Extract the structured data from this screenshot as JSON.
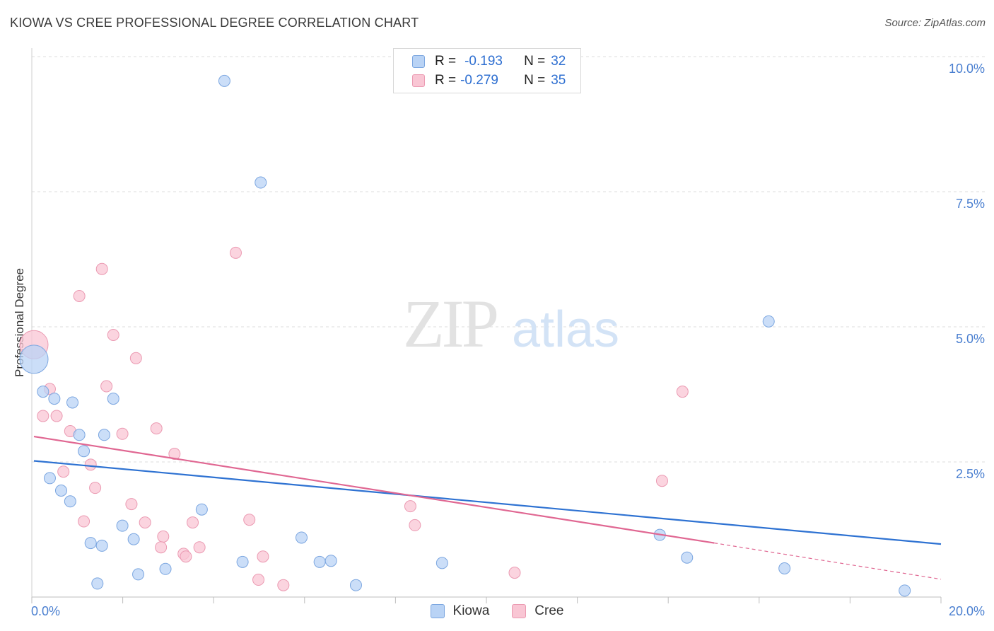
{
  "header": {
    "title": "KIOWA VS CREE PROFESSIONAL DEGREE CORRELATION CHART",
    "source": "Source: ZipAtlas.com"
  },
  "watermark": {
    "zip": "ZIP",
    "atlas": "atlas"
  },
  "legend_top": {
    "rows": [
      {
        "r_label": "R =",
        "r_value": "-0.193",
        "n_label": "N =",
        "n_value": "32"
      },
      {
        "r_label": "R =",
        "r_value": "-0.279",
        "n_label": "N =",
        "n_value": "35"
      }
    ]
  },
  "legend_bottom": {
    "kiowa": "Kiowa",
    "cree": "Cree"
  },
  "colors": {
    "kiowa_fill": "#b9d3f5",
    "kiowa_stroke": "#7ba6e0",
    "kiowa_line": "#2e72d2",
    "cree_fill": "#f9c6d4",
    "cree_stroke": "#eb9ab2",
    "cree_line": "#e06792",
    "tick_label": "#4a7fd0",
    "grid": "#dcdcdc"
  },
  "chart_data": {
    "type": "scatter",
    "title": "KIOWA VS CREE PROFESSIONAL DEGREE CORRELATION CHART",
    "xlabel": "",
    "ylabel": "Professional Degree",
    "xlim": [
      0,
      20
    ],
    "ylim": [
      0,
      10
    ],
    "x_tick_labels": [
      "0.0%",
      "20.0%"
    ],
    "y_ticks": [
      2.5,
      5.0,
      7.5,
      10.0
    ],
    "y_tick_labels": [
      "2.5%",
      "5.0%",
      "7.5%",
      "10.0%"
    ],
    "series": [
      {
        "name": "Kiowa",
        "R": -0.193,
        "N": 32,
        "trend": {
          "x": [
            0,
            20
          ],
          "y": [
            2.52,
            0.98
          ]
        },
        "points": [
          {
            "x": 0.0,
            "y": 4.4,
            "big": true
          },
          {
            "x": 0.2,
            "y": 3.8
          },
          {
            "x": 0.45,
            "y": 3.67
          },
          {
            "x": 0.85,
            "y": 3.6
          },
          {
            "x": 1.75,
            "y": 3.67
          },
          {
            "x": 1.0,
            "y": 3.0
          },
          {
            "x": 1.55,
            "y": 3.0
          },
          {
            "x": 1.1,
            "y": 2.7
          },
          {
            "x": 0.35,
            "y": 2.2
          },
          {
            "x": 0.6,
            "y": 1.97
          },
          {
            "x": 0.8,
            "y": 1.77
          },
          {
            "x": 1.95,
            "y": 1.32
          },
          {
            "x": 1.25,
            "y": 1.0
          },
          {
            "x": 1.5,
            "y": 0.95
          },
          {
            "x": 2.2,
            "y": 1.07
          },
          {
            "x": 3.7,
            "y": 1.62
          },
          {
            "x": 1.4,
            "y": 0.25
          },
          {
            "x": 2.3,
            "y": 0.42
          },
          {
            "x": 2.9,
            "y": 0.52
          },
          {
            "x": 4.6,
            "y": 0.65
          },
          {
            "x": 5.9,
            "y": 1.1
          },
          {
            "x": 6.3,
            "y": 0.65
          },
          {
            "x": 6.55,
            "y": 0.67
          },
          {
            "x": 7.1,
            "y": 0.22
          },
          {
            "x": 9.0,
            "y": 0.63
          },
          {
            "x": 4.2,
            "y": 9.55
          },
          {
            "x": 5.0,
            "y": 7.67
          },
          {
            "x": 16.2,
            "y": 5.1
          },
          {
            "x": 13.8,
            "y": 1.15
          },
          {
            "x": 14.4,
            "y": 0.73
          },
          {
            "x": 16.55,
            "y": 0.53
          },
          {
            "x": 19.2,
            "y": 0.12
          }
        ]
      },
      {
        "name": "Cree",
        "R": -0.279,
        "N": 35,
        "trend": {
          "x": [
            0,
            15
          ],
          "y": [
            2.97,
            1.0
          ],
          "dashed_extension": {
            "x": [
              15,
              20
            ],
            "y": [
              1.0,
              0.33
            ]
          }
        },
        "points": [
          {
            "x": 0.0,
            "y": 4.67,
            "big": true
          },
          {
            "x": 0.35,
            "y": 3.85
          },
          {
            "x": 0.2,
            "y": 3.35
          },
          {
            "x": 0.5,
            "y": 3.35
          },
          {
            "x": 0.8,
            "y": 3.07
          },
          {
            "x": 1.0,
            "y": 5.57
          },
          {
            "x": 1.5,
            "y": 6.07
          },
          {
            "x": 1.6,
            "y": 3.9
          },
          {
            "x": 1.75,
            "y": 4.85
          },
          {
            "x": 2.25,
            "y": 4.42
          },
          {
            "x": 1.95,
            "y": 3.02
          },
          {
            "x": 2.7,
            "y": 3.12
          },
          {
            "x": 3.1,
            "y": 2.65
          },
          {
            "x": 1.25,
            "y": 2.45
          },
          {
            "x": 0.65,
            "y": 2.32
          },
          {
            "x": 1.35,
            "y": 2.02
          },
          {
            "x": 2.15,
            "y": 1.72
          },
          {
            "x": 1.1,
            "y": 1.4
          },
          {
            "x": 2.45,
            "y": 1.38
          },
          {
            "x": 3.5,
            "y": 1.38
          },
          {
            "x": 4.75,
            "y": 1.43
          },
          {
            "x": 2.85,
            "y": 1.12
          },
          {
            "x": 2.8,
            "y": 0.92
          },
          {
            "x": 3.65,
            "y": 0.92
          },
          {
            "x": 3.3,
            "y": 0.8
          },
          {
            "x": 3.35,
            "y": 0.75
          },
          {
            "x": 5.05,
            "y": 0.75
          },
          {
            "x": 4.95,
            "y": 0.32
          },
          {
            "x": 5.5,
            "y": 0.22
          },
          {
            "x": 4.45,
            "y": 6.37
          },
          {
            "x": 8.3,
            "y": 1.68
          },
          {
            "x": 8.4,
            "y": 1.33
          },
          {
            "x": 10.6,
            "y": 0.45
          },
          {
            "x": 13.85,
            "y": 2.15
          },
          {
            "x": 14.3,
            "y": 3.8
          }
        ]
      }
    ]
  }
}
